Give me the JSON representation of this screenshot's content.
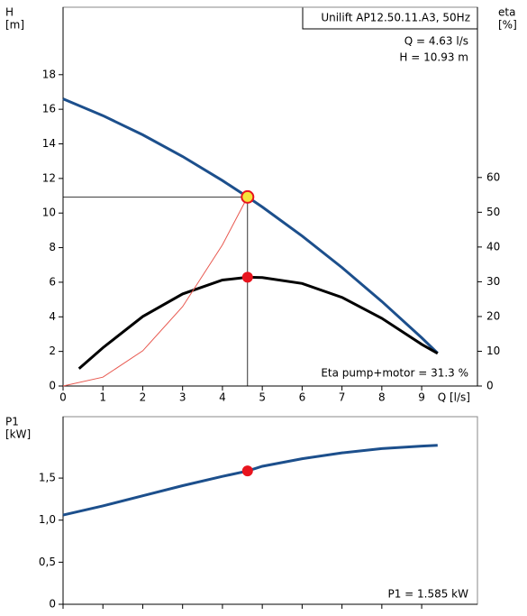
{
  "chart_data": [
    {
      "type": "line",
      "y_label": "H",
      "y_unit": "[m]",
      "y2_label": "eta",
      "y2_unit": "[%]",
      "x_label": "Q [l/s]",
      "title": "Unilift AP12.50.11.A3, 50Hz",
      "annotations": [
        "Q = 4.63 l/s",
        "H = 10.93 m",
        "Eta pump+motor = 31.3 %"
      ],
      "xlim": [
        0,
        10.4
      ],
      "ylim": [
        0,
        21.9
      ],
      "y2lim": [
        0,
        109
      ],
      "xticks": [
        0,
        1,
        2,
        3,
        4,
        5,
        6,
        7,
        8,
        9
      ],
      "yticks": [
        0,
        2,
        4,
        6,
        8,
        10,
        12,
        14,
        16,
        18
      ],
      "y2ticks": [
        0,
        10,
        20,
        30,
        40,
        50,
        60
      ],
      "series": [
        {
          "name": "H",
          "color": "#1c4f8c",
          "x": [
            0,
            1,
            2,
            3,
            4,
            4.63,
            5,
            6,
            7,
            8,
            9,
            9.4
          ],
          "values": [
            16.6,
            15.63,
            14.52,
            13.27,
            11.88,
            10.93,
            10.35,
            8.67,
            6.85,
            4.89,
            2.79,
            1.9
          ]
        },
        {
          "name": "eta",
          "color": "#000000",
          "axis": "y2",
          "x": [
            0.4,
            1,
            2,
            3,
            4,
            4.63,
            5,
            6,
            7,
            8,
            9,
            9.4
          ],
          "values": [
            5,
            11,
            20,
            26.5,
            30.5,
            31.3,
            31.2,
            29.5,
            25.5,
            19.5,
            12,
            9.4
          ]
        },
        {
          "name": "system",
          "color": "#e8584f",
          "x": [
            0,
            1,
            2,
            3,
            4,
            4.63
          ],
          "values": [
            0,
            0.51,
            2.04,
            4.59,
            8.16,
            10.93
          ]
        }
      ],
      "operating_point": {
        "x": 4.63,
        "y": 10.93,
        "eta": 31.3
      }
    },
    {
      "type": "line",
      "y_label": "P1",
      "y_unit": "[kW]",
      "annotations": [
        "P1 = 1.585 kW"
      ],
      "xlim": [
        0,
        10.4
      ],
      "ylim": [
        0,
        2.23
      ],
      "yticks": [
        0,
        {
          "value": 0.5,
          "label": "0,5"
        },
        {
          "value": 1.0,
          "label": "1,0"
        },
        {
          "value": 1.5,
          "label": "1,5"
        }
      ],
      "series": [
        {
          "name": "P1",
          "color": "#1c4f8c",
          "x": [
            0,
            1,
            2,
            3,
            4,
            4.63,
            5,
            6,
            7,
            8,
            9,
            9.4
          ],
          "values": [
            1.06,
            1.17,
            1.29,
            1.41,
            1.52,
            1.585,
            1.64,
            1.73,
            1.8,
            1.85,
            1.88,
            1.89
          ]
        }
      ],
      "operating_point": {
        "x": 4.63,
        "y": 1.585
      }
    }
  ]
}
